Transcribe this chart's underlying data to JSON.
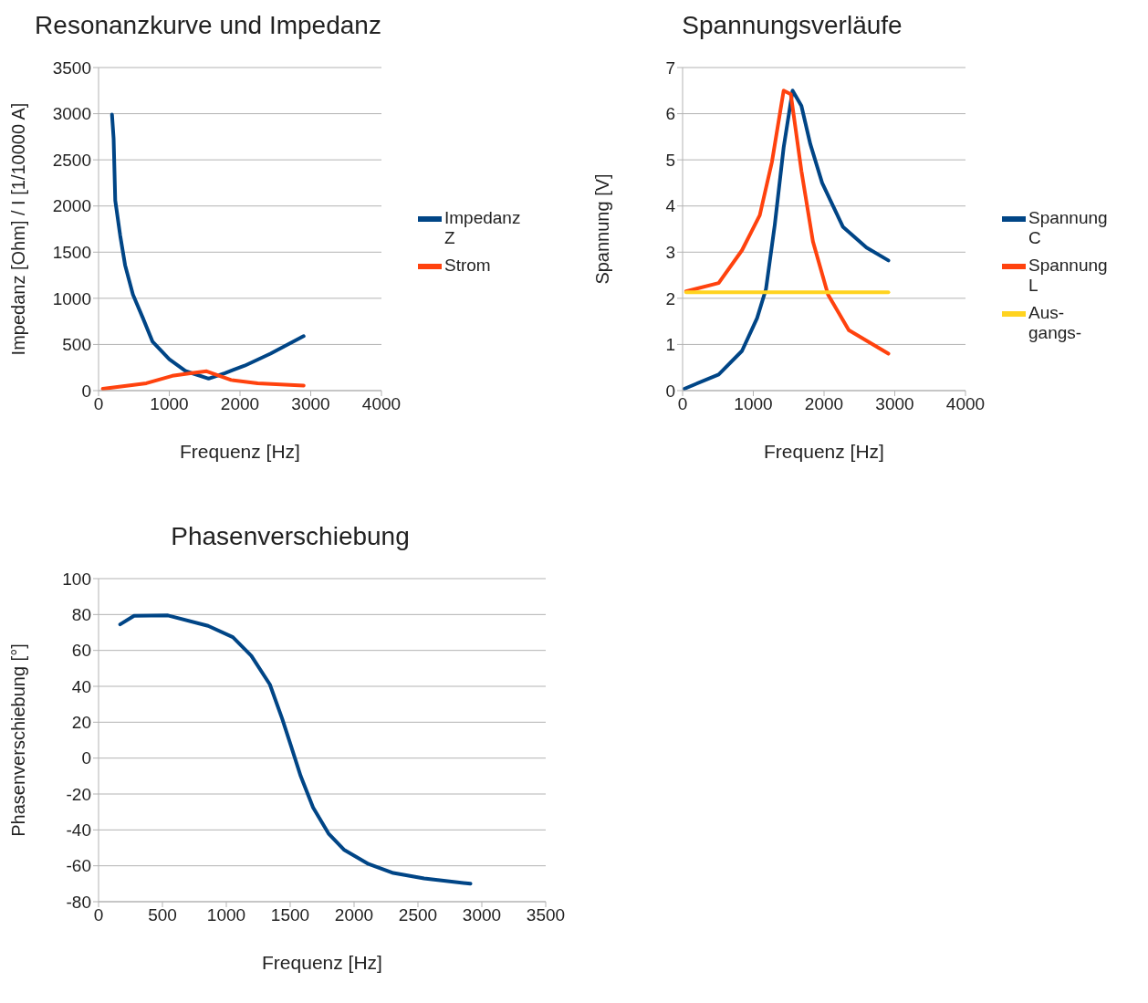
{
  "chart_data": [
    {
      "type": "line",
      "title": "Resonanzkurve und Impedanz",
      "xlabel": "Frequenz [Hz]",
      "ylabel": "Impedanz [Ohm] / I [1/10000 A]",
      "xlim": [
        0,
        4000
      ],
      "xticks": [
        0,
        1000,
        2000,
        3000,
        4000
      ],
      "ylim": [
        0,
        3500
      ],
      "yticks": [
        0,
        500,
        1000,
        1500,
        2000,
        2500,
        3000,
        3500
      ],
      "grid": "y",
      "legend": "right",
      "marker": "none",
      "line_style": "solid",
      "series": [
        {
          "name": "Impedanz Z",
          "color": "#004586",
          "x": [
            190,
            213,
            236,
            306,
            375,
            486,
            625,
            764,
            1000,
            1236,
            1556,
            1787,
            2065,
            2431,
            2900
          ],
          "values": [
            2990,
            2730,
            2060,
            1680,
            1360,
            1040,
            790,
            530,
            340,
            210,
            130,
            190,
            270,
            400,
            590
          ]
        },
        {
          "name": "Strom",
          "color": "#ff420e",
          "x": [
            60,
            676,
            1042,
            1320,
            1528,
            1875,
            2250,
            2900
          ],
          "values": [
            20,
            80,
            160,
            190,
            210,
            115,
            80,
            55
          ]
        }
      ]
    },
    {
      "type": "line",
      "title": "Spannungsverläufe",
      "xlabel": "Frequenz [Hz]",
      "ylabel": "Spannung [V]",
      "xlim": [
        0,
        4000
      ],
      "xticks": [
        0,
        1000,
        2000,
        3000,
        4000
      ],
      "ylim": [
        0,
        7
      ],
      "yticks": [
        0,
        1,
        2,
        3,
        4,
        5,
        6,
        7
      ],
      "grid": "y",
      "legend": "right",
      "marker": "none",
      "line_style": "solid",
      "series": [
        {
          "name": "Spannung C",
          "color": "#004586",
          "x": [
            25,
            510,
            840,
            1053,
            1179,
            1304,
            1429,
            1555,
            1680,
            1806,
            1973,
            2266,
            2600,
            2910
          ],
          "values": [
            0.04,
            0.35,
            0.86,
            1.57,
            2.2,
            3.6,
            5.27,
            6.5,
            6.17,
            5.34,
            4.5,
            3.55,
            3.1,
            2.82
          ]
        },
        {
          "name": "Spannung L",
          "color": "#ff420e",
          "x": [
            50,
            510,
            840,
            1091,
            1263,
            1429,
            1530,
            1680,
            1843,
            2056,
            2350,
            2910
          ],
          "values": [
            2.15,
            2.33,
            3.04,
            3.8,
            4.95,
            6.5,
            6.42,
            4.76,
            3.23,
            2.08,
            1.31,
            0.8
          ]
        },
        {
          "name": "Aus- gangs-",
          "color": "#ffd320",
          "x": [
            50,
            2910
          ],
          "values": [
            2.13,
            2.13
          ]
        }
      ]
    },
    {
      "type": "line",
      "title": "Phasenverschiebung",
      "xlabel": "Frequenz [Hz]",
      "ylabel": "Phasenverschiebung [°]",
      "xlim": [
        0,
        3500
      ],
      "xticks": [
        0,
        500,
        1000,
        1500,
        2000,
        2500,
        3000,
        3500
      ],
      "ylim": [
        -80,
        100
      ],
      "yticks": [
        -80,
        -60,
        -40,
        -20,
        0,
        20,
        40,
        60,
        80,
        100
      ],
      "grid": "y",
      "legend": false,
      "marker": "none",
      "line_style": "solid",
      "series": [
        {
          "color": "#004586",
          "x": [
            169,
            278,
            543,
            857,
            1051,
            1196,
            1341,
            1437,
            1510,
            1582,
            1679,
            1800,
            1920,
            2113,
            2307,
            2548,
            2911
          ],
          "values": [
            74.5,
            79.3,
            79.5,
            73.7,
            67.4,
            57,
            41,
            22,
            6,
            -10,
            -27.5,
            -42,
            -51,
            -59,
            -64,
            -67,
            -70
          ]
        }
      ]
    }
  ]
}
